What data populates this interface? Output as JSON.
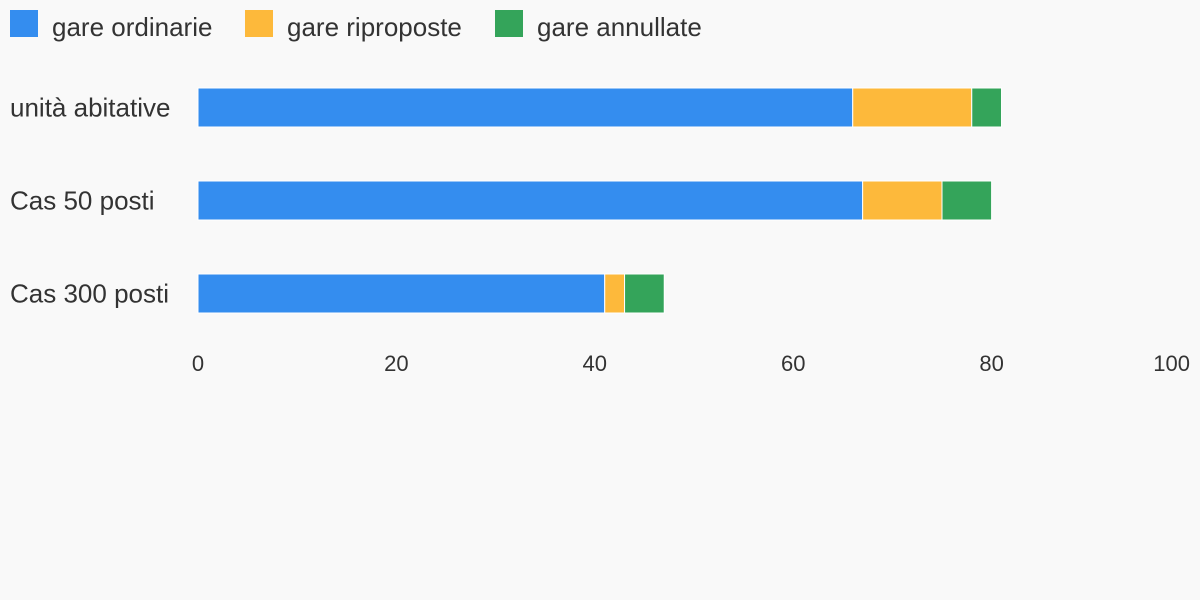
{
  "chart_data": {
    "type": "bar",
    "orientation": "horizontal",
    "stacked": true,
    "categories": [
      "unità abitative",
      "Cas 50 posti",
      "Cas 300 posti"
    ],
    "series": [
      {
        "name": "gare ordinarie",
        "color": "#348def",
        "values": [
          66,
          67,
          41
        ]
      },
      {
        "name": "gare riproposte",
        "color": "#fdb93b",
        "values": [
          12,
          8,
          2
        ]
      },
      {
        "name": "gare annullate",
        "color": "#34a45a",
        "values": [
          3,
          5,
          4
        ]
      }
    ],
    "xlim": [
      0,
      100
    ],
    "xticks": [
      0,
      20,
      40,
      60,
      80,
      100
    ],
    "legend_position": "top-left",
    "grid": false
  }
}
